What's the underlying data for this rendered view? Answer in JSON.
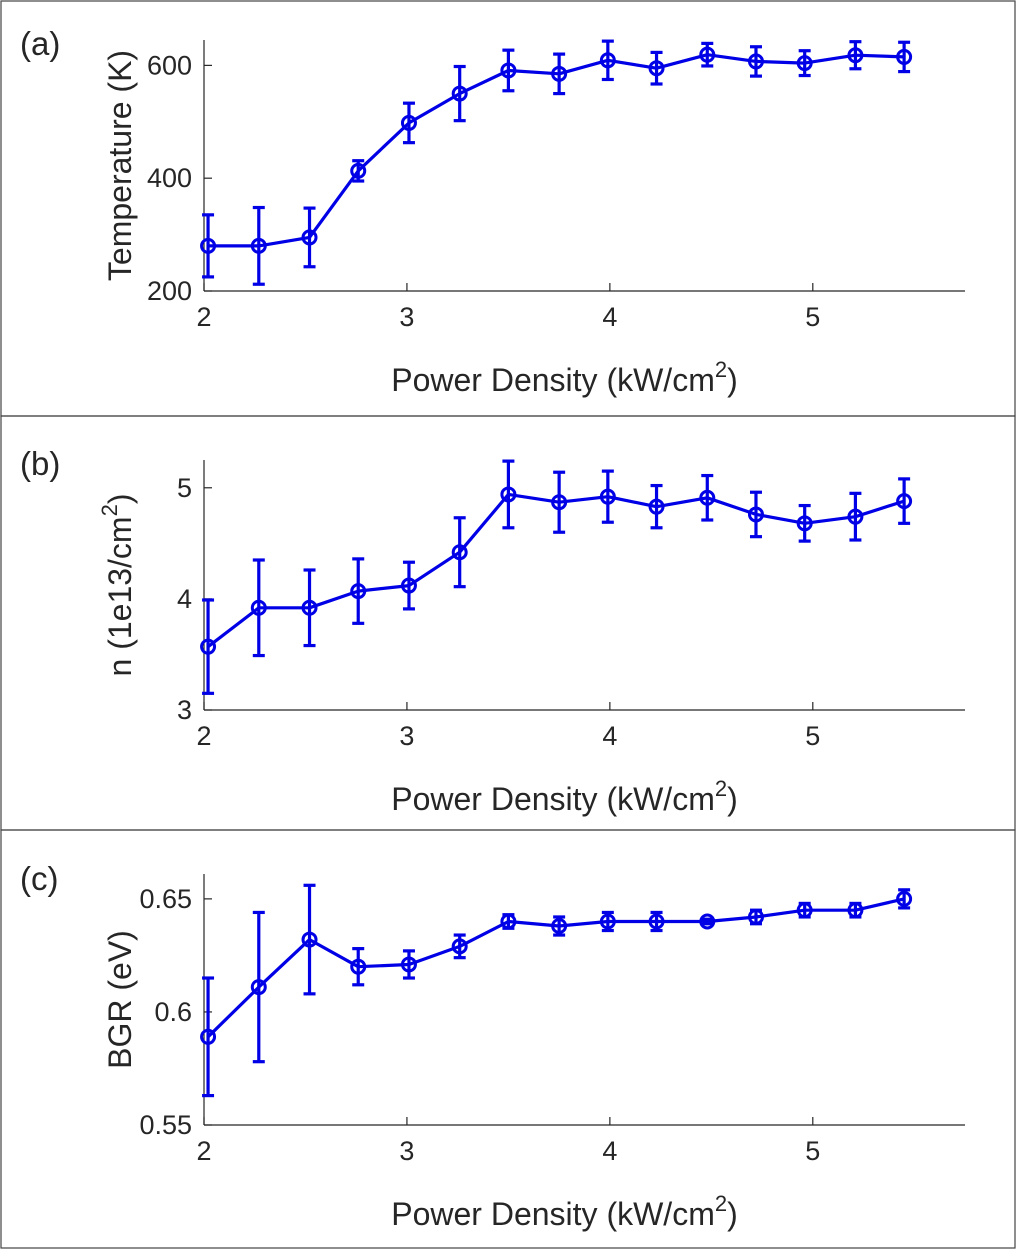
{
  "chart_data": [
    {
      "type": "line",
      "panel_label": "(a)",
      "xlabel": "Power Density (kW/cm",
      "xlabel_sup": "2",
      "xlabel_close": ")",
      "ylabel": "Temperature (K)",
      "xlim": [
        2,
        5.75
      ],
      "ylim": [
        200,
        645
      ],
      "xticks": [
        2,
        3,
        4,
        5
      ],
      "yticks": [
        200,
        400,
        600
      ],
      "ytick_labels": [
        "200",
        "400",
        "600"
      ],
      "grid": false,
      "series": [
        {
          "color": "#0000e6",
          "x": [
            2.02,
            2.27,
            2.52,
            2.76,
            3.01,
            3.26,
            3.5,
            3.75,
            3.99,
            4.23,
            4.48,
            4.72,
            4.96,
            5.21,
            5.45
          ],
          "y": [
            280,
            280,
            295,
            413,
            498,
            550,
            591,
            585,
            609,
            595,
            619,
            607,
            604,
            618,
            615
          ],
          "err": [
            55,
            68,
            52,
            18,
            35,
            48,
            36,
            35,
            34,
            28,
            20,
            26,
            22,
            24,
            26
          ]
        }
      ]
    },
    {
      "type": "line",
      "panel_label": "(b)",
      "xlabel": "Power Density (kW/cm",
      "xlabel_sup": "2",
      "xlabel_close": ")",
      "ylabel": "n (1e13/cm",
      "ylabel_sup": "2",
      "ylabel_close": ")",
      "xlim": [
        2,
        5.75
      ],
      "ylim": [
        3,
        5.25
      ],
      "xticks": [
        2,
        3,
        4,
        5
      ],
      "yticks": [
        3,
        4,
        5
      ],
      "ytick_labels": [
        "3",
        "4",
        "5"
      ],
      "grid": false,
      "series": [
        {
          "color": "#0000e6",
          "x": [
            2.02,
            2.27,
            2.52,
            2.76,
            3.01,
            3.26,
            3.5,
            3.75,
            3.99,
            4.23,
            4.48,
            4.72,
            4.96,
            5.21,
            5.45
          ],
          "y": [
            3.57,
            3.92,
            3.92,
            4.07,
            4.12,
            4.42,
            4.94,
            4.87,
            4.92,
            4.83,
            4.91,
            4.76,
            4.68,
            4.74,
            4.88
          ],
          "err": [
            0.42,
            0.43,
            0.34,
            0.29,
            0.21,
            0.31,
            0.3,
            0.27,
            0.23,
            0.19,
            0.2,
            0.2,
            0.16,
            0.21,
            0.2
          ]
        }
      ]
    },
    {
      "type": "line",
      "panel_label": "(c)",
      "xlabel": "Power Density (kW/cm",
      "xlabel_sup": "2",
      "xlabel_close": ")",
      "ylabel": "BGR (eV)",
      "xlim": [
        2,
        5.75
      ],
      "ylim": [
        0.55,
        0.661
      ],
      "xticks": [
        2,
        3,
        4,
        5
      ],
      "yticks": [
        0.55,
        0.6,
        0.65
      ],
      "ytick_labels": [
        "0.55",
        "0.6",
        "0.65"
      ],
      "grid": false,
      "series": [
        {
          "color": "#0000e6",
          "x": [
            2.02,
            2.27,
            2.52,
            2.76,
            3.01,
            3.26,
            3.5,
            3.75,
            3.99,
            4.23,
            4.48,
            4.72,
            4.96,
            5.21,
            5.45
          ],
          "y": [
            0.589,
            0.611,
            0.632,
            0.62,
            0.621,
            0.629,
            0.64,
            0.638,
            0.64,
            0.64,
            0.64,
            0.642,
            0.645,
            0.645,
            0.65
          ],
          "err": [
            0.026,
            0.033,
            0.024,
            0.008,
            0.006,
            0.005,
            0.003,
            0.004,
            0.004,
            0.004,
            0.001,
            0.003,
            0.003,
            0.003,
            0.004
          ]
        }
      ]
    }
  ]
}
